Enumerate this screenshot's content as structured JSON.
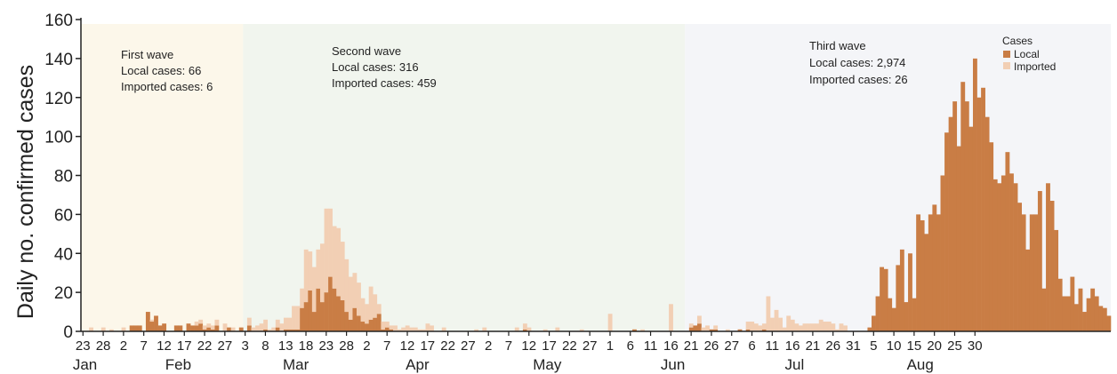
{
  "chart_data": {
    "type": "bar",
    "stacked": true,
    "ylabel": "Daily no. confirmed cases",
    "ylim": [
      0,
      160
    ],
    "yticks": [
      0,
      20,
      40,
      60,
      80,
      100,
      120,
      140,
      160
    ],
    "x_tick_labels": [
      "23",
      "28",
      "2",
      "7",
      "12",
      "17",
      "22",
      "27",
      "3",
      "8",
      "13",
      "18",
      "23",
      "28",
      "2",
      "7",
      "12",
      "17",
      "22",
      "27",
      "2",
      "7",
      "12",
      "17",
      "22",
      "27",
      "1",
      "6",
      "11",
      "16",
      "21",
      "26",
      "27",
      "6",
      "11",
      "16",
      "21",
      "26",
      "31",
      "5",
      "10",
      "15",
      "20",
      "25",
      "30"
    ],
    "month_labels": [
      "Jan",
      "Feb",
      "Mar",
      "Apr",
      "May",
      "Jun",
      "Jul",
      "Aug"
    ],
    "colors": {
      "local": "#c97d45",
      "imported": "#f2cfb4",
      "wave1_bg": "#fcf7ea",
      "wave2_bg": "#f1f5ee",
      "wave3_bg": "#f4f5f8"
    },
    "waves": [
      {
        "title": "First wave",
        "local_text": "Local cases: 66",
        "imported_text": "Imported cases: 6"
      },
      {
        "title": "Second wave",
        "local_text": "Local cases: 316",
        "imported_text": "Imported cases: 459"
      },
      {
        "title": "Third wave",
        "local_text": "Local cases: 2,974",
        "imported_text": "Imported cases: 26"
      }
    ],
    "legend": {
      "title": "Cases",
      "local": "Local",
      "imported": "Imported"
    },
    "series": [
      {
        "name": "Local",
        "values": [
          0,
          0,
          0,
          0,
          0,
          0,
          0,
          0,
          0,
          0,
          0,
          0,
          3,
          3,
          3,
          0,
          10,
          5,
          8,
          3,
          4,
          0,
          0,
          3,
          3,
          0,
          4,
          3,
          3,
          4,
          1,
          2,
          1,
          3,
          0,
          0,
          2,
          0,
          0,
          2,
          0,
          3,
          0,
          0,
          0,
          1,
          0,
          0,
          2,
          0,
          1,
          1,
          1,
          1,
          12,
          15,
          21,
          10,
          22,
          15,
          20,
          28,
          22,
          18,
          16,
          10,
          6,
          12,
          8,
          5,
          4,
          6,
          7,
          9,
          1,
          2,
          1,
          0,
          0,
          0,
          0,
          0,
          0,
          0,
          0,
          0,
          0,
          0,
          0,
          0,
          0,
          0,
          0,
          0,
          0,
          0,
          0,
          0,
          0,
          0,
          0,
          0,
          0,
          0,
          0,
          0,
          0,
          0,
          0,
          1,
          0,
          0,
          0,
          0,
          0,
          0,
          0,
          0,
          0,
          0,
          0,
          0,
          0,
          0,
          0,
          0,
          0,
          0,
          0,
          0,
          0,
          0,
          0,
          0,
          0,
          0,
          1,
          0,
          0,
          0,
          0,
          0,
          0,
          0,
          0,
          0,
          0,
          0,
          0,
          0,
          2,
          3,
          4,
          0,
          0,
          1,
          1,
          0,
          0,
          0,
          0,
          0,
          1,
          0,
          1,
          0,
          0,
          0,
          1,
          0,
          0,
          0,
          0,
          0,
          0,
          0,
          0,
          0,
          0,
          0,
          0,
          0,
          0,
          0,
          0,
          0,
          0,
          0,
          0,
          0,
          0,
          0,
          0,
          0,
          2,
          8,
          18,
          33,
          32,
          17,
          12,
          34,
          42,
          15,
          40,
          17,
          60,
          57,
          50,
          60,
          65,
          60,
          80,
          102,
          110,
          118,
          95,
          128,
          118,
          105,
          140,
          120,
          125,
          110,
          97,
          78,
          76,
          80,
          92,
          81,
          76,
          66,
          60,
          42,
          60,
          60,
          72,
          22,
          76,
          67,
          52,
          27,
          18,
          18,
          28,
          14,
          22,
          10,
          17,
          22,
          18,
          13,
          12,
          8
        ]
      },
      {
        "name": "Imported",
        "values": [
          0,
          0,
          2,
          0,
          0,
          2,
          0,
          1,
          0,
          0,
          2,
          0,
          0,
          0,
          0,
          0,
          0,
          1,
          0,
          0,
          0,
          0,
          0,
          0,
          0,
          0,
          0,
          0,
          2,
          2,
          2,
          2,
          2,
          3,
          0,
          4,
          0,
          2,
          0,
          0,
          0,
          4,
          2,
          3,
          4,
          5,
          1,
          2,
          4,
          4,
          6,
          6,
          12,
          12,
          10,
          27,
          20,
          23,
          20,
          30,
          43,
          35,
          32,
          35,
          30,
          27,
          22,
          18,
          17,
          12,
          10,
          17,
          12,
          5,
          4,
          3,
          2,
          3,
          1,
          2,
          3,
          2,
          2,
          1,
          1,
          4,
          3,
          0,
          0,
          2,
          0,
          0,
          0,
          0,
          0,
          0,
          0,
          1,
          0,
          2,
          0,
          0,
          0,
          0,
          0,
          0,
          0,
          2,
          0,
          3,
          2,
          0,
          0,
          0,
          1,
          0,
          0,
          2,
          0,
          0,
          0,
          0,
          0,
          1,
          0,
          0,
          0,
          0,
          0,
          0,
          9,
          0,
          0,
          0,
          0,
          0,
          0,
          0,
          1,
          0,
          0,
          0,
          0,
          0,
          0,
          14,
          0,
          0,
          0,
          0,
          2,
          0,
          4,
          2,
          3,
          0,
          2,
          0,
          0,
          1,
          0,
          0,
          0,
          0,
          4,
          5,
          4,
          3,
          3,
          18,
          7,
          11,
          7,
          2,
          8,
          6,
          4,
          3,
          4,
          4,
          4,
          4,
          6,
          5,
          5,
          4,
          1,
          4,
          3,
          0,
          0,
          0,
          0,
          0,
          0,
          0,
          0,
          0,
          0,
          0,
          0,
          0,
          0,
          0,
          0,
          0,
          0,
          0,
          0,
          0,
          0,
          0,
          0,
          0,
          0,
          0,
          0,
          0,
          0,
          0,
          0,
          0,
          0,
          0,
          0,
          0,
          0,
          0,
          0,
          0,
          0,
          0,
          0,
          0,
          0,
          0,
          0,
          0,
          0,
          0,
          0,
          0,
          0,
          0,
          0,
          0,
          0,
          0,
          0,
          0,
          0,
          0,
          0,
          0,
          0,
          0,
          0,
          0,
          0,
          0,
          0,
          0,
          0,
          0,
          0,
          0
        ]
      }
    ]
  }
}
